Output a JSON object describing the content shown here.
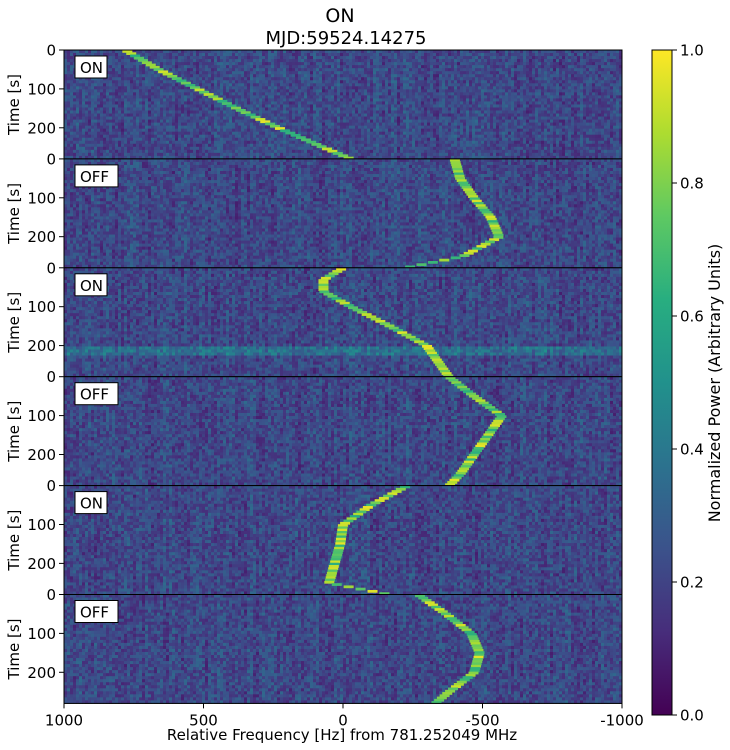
{
  "chart_data": {
    "type": "heatmap",
    "title": "ON",
    "subtitle": "MJD:59524.14275",
    "xlabel": "Relative Frequency [Hz] from 781.252049 MHz",
    "ylabel": "Time [s]",
    "xlim": [
      1000,
      -1000
    ],
    "xticks": [
      "1000",
      "500",
      "0",
      "-500",
      "-1000"
    ],
    "xtick_values": [
      1000,
      500,
      0,
      -500,
      -1000
    ],
    "ylim": [
      0,
      280
    ],
    "yticks": [
      "0",
      "100",
      "200"
    ],
    "ytick_values": [
      0,
      100,
      200
    ],
    "colormap": "viridis",
    "colorbar": {
      "label": "Normalized Power (Arbitrary Units)",
      "range": [
        0.0,
        1.0
      ],
      "ticks": [
        "0.0",
        "0.2",
        "0.4",
        "0.6",
        "0.8",
        "1.0"
      ],
      "tick_values": [
        0.0,
        0.2,
        0.4,
        0.6,
        0.8,
        1.0
      ]
    },
    "panels": [
      {
        "label": "ON",
        "times": [
          0,
          50,
          100,
          150,
          200,
          250,
          280
        ],
        "freqs": [
          780,
          660,
          520,
          380,
          230,
          70,
          -30
        ]
      },
      {
        "label": "OFF",
        "times": [
          0,
          50,
          100,
          150,
          200,
          250,
          280
        ],
        "freqs": [
          -400,
          -420,
          -470,
          -530,
          -560,
          -430,
          -220
        ]
      },
      {
        "label": "ON",
        "times": [
          0,
          30,
          60,
          100,
          150,
          200,
          250,
          280
        ],
        "freqs": [
          0,
          70,
          70,
          -30,
          -170,
          -300,
          -350,
          -380
        ]
      },
      {
        "label": "OFF",
        "times": [
          0,
          50,
          100,
          150,
          200,
          250,
          280
        ],
        "freqs": [
          -380,
          -470,
          -570,
          -520,
          -470,
          -420,
          -380
        ]
      },
      {
        "label": "ON",
        "times": [
          0,
          50,
          100,
          150,
          200,
          250,
          280
        ],
        "freqs": [
          -230,
          -100,
          0,
          10,
          30,
          50,
          -170
        ]
      },
      {
        "label": "OFF",
        "times": [
          0,
          50,
          100,
          150,
          200,
          250,
          280
        ],
        "freqs": [
          -270,
          -370,
          -460,
          -490,
          -470,
          -380,
          -330
        ]
      }
    ],
    "rfi_band": {
      "panel": 2,
      "time": 215
    }
  }
}
